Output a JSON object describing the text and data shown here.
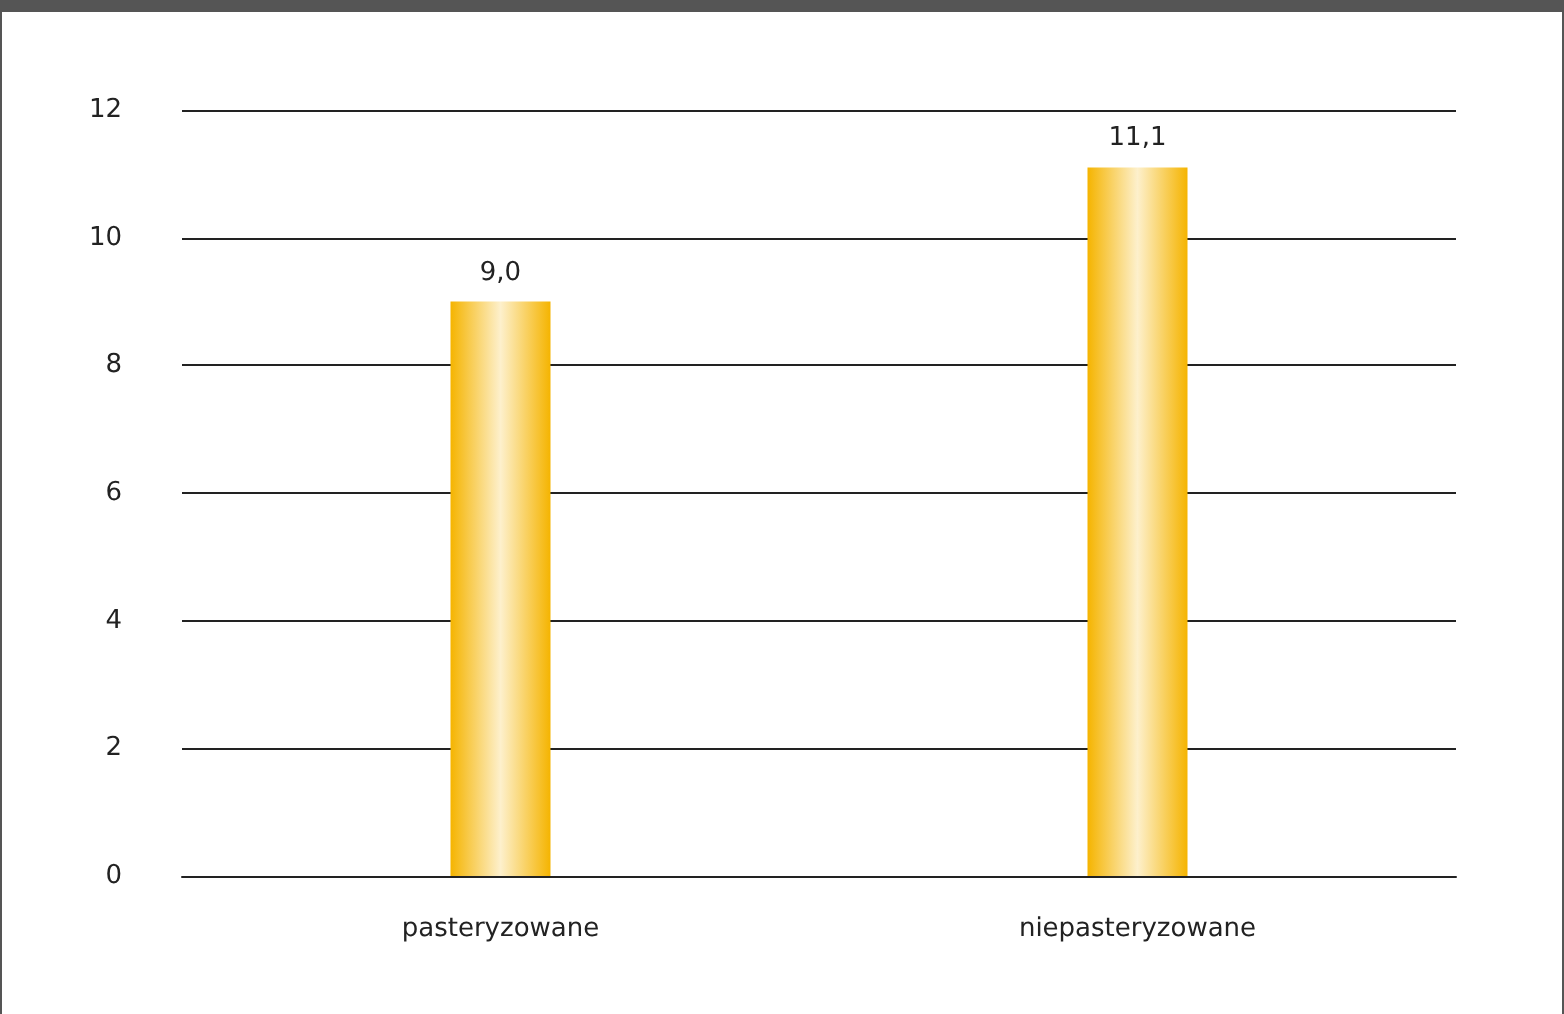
{
  "chart_data": {
    "type": "bar",
    "categories": [
      "pasteryzowane",
      "niepasteryzowane"
    ],
    "values": [
      9.0,
      11.1
    ],
    "value_labels": [
      "9,0",
      "11,1"
    ],
    "color": "#f5b400",
    "ylim": [
      0,
      12
    ],
    "yticks": [
      0,
      2,
      4,
      6,
      8,
      10,
      12
    ],
    "grid": "y"
  }
}
